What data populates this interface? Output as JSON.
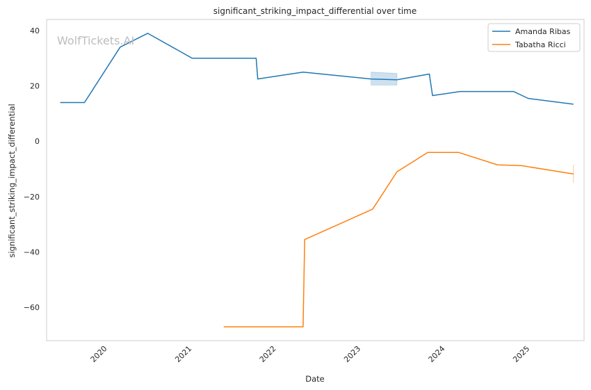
{
  "chart_data": {
    "type": "line",
    "title": "significant_striking_impact_differential over time",
    "xlabel": "Date",
    "ylabel": "significant_striking_impact_differential",
    "watermark": "WolfTickets.AI",
    "x_ticks": [
      "2020",
      "2021",
      "2022",
      "2023",
      "2024",
      "2025"
    ],
    "y_ticks": [
      "−60",
      "−40",
      "−20",
      "0",
      "20",
      "40"
    ],
    "xlim": [
      "2019-05-01",
      "2025-09-10"
    ],
    "ylim": [
      -72,
      44
    ],
    "grid": true,
    "legend_position": "top-right",
    "series": [
      {
        "name": "Amanda Ribas",
        "color": "#1f77b4",
        "points": [
          [
            "2019-06-29",
            14
          ],
          [
            "2019-10-12",
            14
          ],
          [
            "2020-03-14",
            34
          ],
          [
            "2020-07-11",
            39
          ],
          [
            "2021-01-20",
            30
          ],
          [
            "2021-10-23",
            30
          ],
          [
            "2021-10-30",
            22.5
          ],
          [
            "2022-05-14",
            25
          ],
          [
            "2023-03-04",
            22.5
          ],
          [
            "2023-06-24",
            22.2
          ],
          [
            "2023-11-11",
            24.3
          ],
          [
            "2023-11-25",
            16.5
          ],
          [
            "2024-03-23",
            18
          ],
          [
            "2024-11-09",
            18
          ],
          [
            "2025-01-11",
            15.5
          ],
          [
            "2025-07-26",
            13.4
          ]
        ],
        "band": [
          [
            "2023-03-04",
            20.3,
            25
          ],
          [
            "2023-06-24",
            20.3,
            24.5
          ]
        ]
      },
      {
        "name": "Tabatha Ricci",
        "color": "#ff7f0e",
        "points": [
          [
            "2021-06-05",
            -67
          ],
          [
            "2022-05-14",
            -67
          ],
          [
            "2022-05-21",
            -35.5
          ],
          [
            "2023-03-11",
            -24.5
          ],
          [
            "2023-06-24",
            -11
          ],
          [
            "2023-11-04",
            -4
          ],
          [
            "2024-03-16",
            -4
          ],
          [
            "2024-08-31",
            -8.5
          ],
          [
            "2024-12-14",
            -8.8
          ],
          [
            "2025-07-26",
            -11.8
          ]
        ],
        "band": [
          [
            "2025-07-26",
            -15,
            -8.5
          ]
        ]
      }
    ]
  }
}
